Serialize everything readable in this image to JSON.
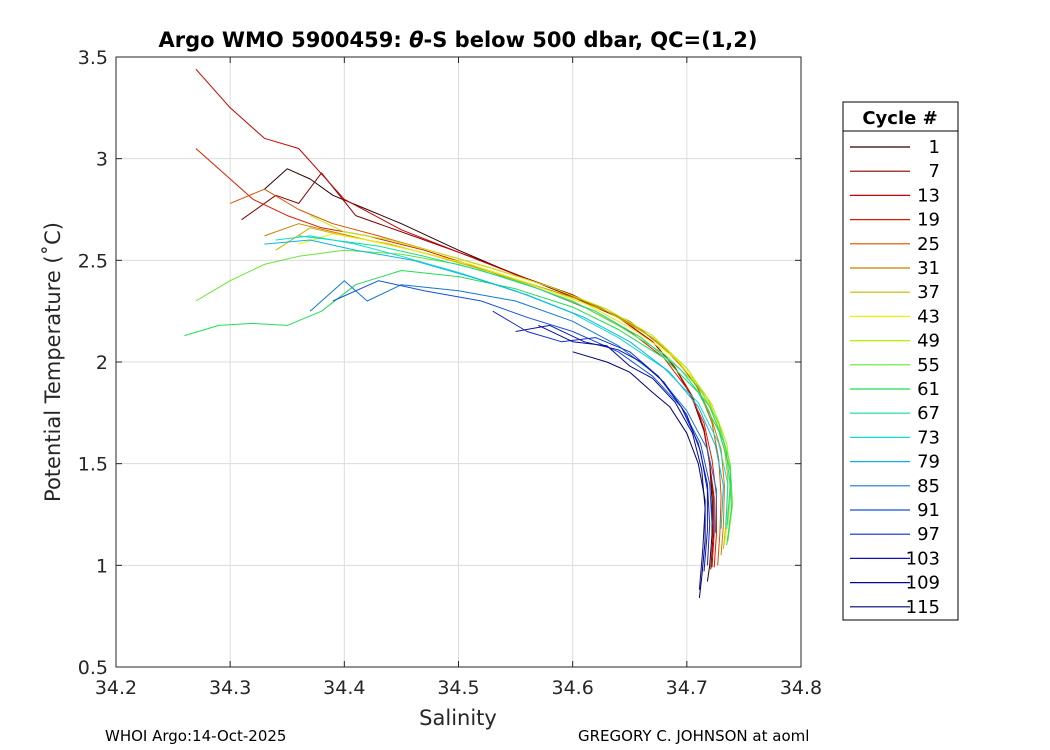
{
  "chart_data": {
    "type": "line",
    "title_prefix": "Argo WMO 5900459: ",
    "title_theta": "θ",
    "title_suffix": "-S below 500 dbar,  QC=(1,2)",
    "xlabel": "Salinity",
    "ylabel": "Potential Temperature (˚C)",
    "xlim": [
      34.2,
      34.8
    ],
    "ylim": [
      0.5,
      3.5
    ],
    "xticks": [
      "34.2",
      "34.3",
      "34.4",
      "34.5",
      "34.6",
      "34.7",
      "34.8"
    ],
    "yticks": [
      "0.5",
      "1",
      "1.5",
      "2",
      "2.5",
      "3",
      "3.5"
    ],
    "grid": true,
    "legend_title": "Cycle #",
    "legend_position": "right",
    "legend": [
      {
        "label": "1",
        "color": "#300000"
      },
      {
        "label": "7",
        "color": "#8a0000"
      },
      {
        "label": "13",
        "color": "#cc0000"
      },
      {
        "label": "19",
        "color": "#e01c00"
      },
      {
        "label": "25",
        "color": "#dd5000"
      },
      {
        "label": "31",
        "color": "#c88000"
      },
      {
        "label": "37",
        "color": "#c8b400"
      },
      {
        "label": "43",
        "color": "#f0f000"
      },
      {
        "label": "49",
        "color": "#b4f000"
      },
      {
        "label": "55",
        "color": "#64e632"
      },
      {
        "label": "61",
        "color": "#22dd55"
      },
      {
        "label": "67",
        "color": "#10dd99"
      },
      {
        "label": "73",
        "color": "#10dcd2"
      },
      {
        "label": "79",
        "color": "#10b4e6"
      },
      {
        "label": "85",
        "color": "#1478d2"
      },
      {
        "label": "91",
        "color": "#1450dc"
      },
      {
        "label": "97",
        "color": "#1428d2"
      },
      {
        "label": "103",
        "color": "#0a14b4"
      },
      {
        "label": "109",
        "color": "#050a96"
      },
      {
        "label": "115",
        "color": "#00006e"
      }
    ],
    "series": [
      {
        "name": "1",
        "color": "#300000",
        "s": [
          34.33,
          34.35,
          34.37,
          34.39,
          34.42,
          34.45,
          34.5,
          34.55,
          34.6,
          34.64,
          34.67,
          34.69,
          34.705,
          34.715,
          34.72,
          34.722,
          34.722,
          34.72,
          34.718
        ],
        "t": [
          2.85,
          2.95,
          2.9,
          2.82,
          2.75,
          2.68,
          2.55,
          2.43,
          2.33,
          2.22,
          2.1,
          1.97,
          1.82,
          1.66,
          1.5,
          1.32,
          1.15,
          1.0,
          0.92
        ]
      },
      {
        "name": "7",
        "color": "#8a0000",
        "s": [
          34.31,
          34.34,
          34.36,
          34.38,
          34.41,
          34.46,
          34.51,
          34.56,
          34.6,
          34.64,
          34.67,
          34.69,
          34.705,
          34.715,
          34.72,
          34.723,
          34.723,
          34.721
        ],
        "t": [
          2.7,
          2.82,
          2.78,
          2.93,
          2.72,
          2.62,
          2.52,
          2.41,
          2.32,
          2.22,
          2.1,
          1.97,
          1.83,
          1.67,
          1.5,
          1.33,
          1.15,
          0.98
        ]
      },
      {
        "name": "13",
        "color": "#cc0000",
        "s": [
          34.27,
          34.3,
          34.33,
          34.36,
          34.4,
          34.45,
          34.5,
          34.55,
          34.6,
          34.64,
          34.67,
          34.69,
          34.705,
          34.715,
          34.72,
          34.724,
          34.724,
          34.722
        ],
        "t": [
          3.44,
          3.25,
          3.1,
          3.05,
          2.8,
          2.65,
          2.54,
          2.43,
          2.33,
          2.22,
          2.1,
          1.97,
          1.83,
          1.67,
          1.5,
          1.33,
          1.16,
          0.99
        ]
      },
      {
        "name": "19",
        "color": "#e01c00",
        "s": [
          34.27,
          34.3,
          34.32,
          34.35,
          34.38,
          34.42,
          34.47,
          34.52,
          34.57,
          34.61,
          34.65,
          34.68,
          34.7,
          34.715,
          34.722,
          34.726,
          34.726,
          34.724
        ],
        "t": [
          3.05,
          2.9,
          2.8,
          2.72,
          2.66,
          2.62,
          2.55,
          2.46,
          2.36,
          2.27,
          2.15,
          2.02,
          1.87,
          1.7,
          1.52,
          1.34,
          1.16,
          0.99
        ]
      },
      {
        "name": "25",
        "color": "#dd5000",
        "s": [
          34.3,
          34.33,
          34.36,
          34.39,
          34.43,
          34.48,
          34.53,
          34.58,
          34.62,
          34.66,
          34.69,
          34.71,
          34.722,
          34.728,
          34.73,
          34.729,
          34.727
        ],
        "t": [
          2.78,
          2.85,
          2.75,
          2.68,
          2.62,
          2.54,
          2.46,
          2.37,
          2.28,
          2.16,
          2.02,
          1.87,
          1.7,
          1.52,
          1.34,
          1.16,
          1.0
        ]
      },
      {
        "name": "31",
        "color": "#c88000",
        "s": [
          34.33,
          34.36,
          34.39,
          34.42,
          34.46,
          34.51,
          34.56,
          34.61,
          34.65,
          34.68,
          34.705,
          34.72,
          34.73,
          34.733,
          34.732,
          34.73
        ],
        "t": [
          2.62,
          2.68,
          2.64,
          2.6,
          2.55,
          2.48,
          2.39,
          2.3,
          2.2,
          2.07,
          1.92,
          1.75,
          1.57,
          1.39,
          1.2,
          1.05
        ]
      },
      {
        "name": "37",
        "color": "#c8b400",
        "s": [
          34.34,
          34.37,
          34.4,
          34.44,
          34.48,
          34.53,
          34.58,
          34.63,
          34.67,
          34.7,
          34.72,
          34.732,
          34.736,
          34.735,
          34.732
        ],
        "t": [
          2.55,
          2.66,
          2.62,
          2.58,
          2.52,
          2.44,
          2.35,
          2.25,
          2.12,
          1.97,
          1.8,
          1.62,
          1.43,
          1.25,
          1.08
        ]
      },
      {
        "name": "43",
        "color": "#f0f000",
        "s": [
          34.36,
          34.39,
          34.42,
          34.46,
          34.51,
          34.56,
          34.61,
          34.65,
          34.69,
          34.715,
          34.73,
          34.738,
          34.737,
          34.733
        ],
        "t": [
          2.58,
          2.63,
          2.6,
          2.55,
          2.48,
          2.39,
          2.29,
          2.17,
          2.02,
          1.85,
          1.66,
          1.47,
          1.28,
          1.1
        ]
      },
      {
        "name": "49",
        "color": "#b4f000",
        "s": [
          34.37,
          34.4,
          34.44,
          34.48,
          34.53,
          34.58,
          34.63,
          34.67,
          34.7,
          34.722,
          34.735,
          34.739,
          34.736
        ],
        "t": [
          2.72,
          2.64,
          2.6,
          2.54,
          2.46,
          2.37,
          2.26,
          2.13,
          1.97,
          1.79,
          1.6,
          1.41,
          1.2
        ]
      },
      {
        "name": "55",
        "color": "#64e632",
        "s": [
          34.27,
          34.3,
          34.33,
          34.36,
          34.4,
          34.45,
          34.5,
          34.55,
          34.6,
          34.64,
          34.68,
          34.71,
          34.728,
          34.738,
          34.74,
          34.736
        ],
        "t": [
          2.3,
          2.4,
          2.48,
          2.52,
          2.55,
          2.53,
          2.48,
          2.4,
          2.3,
          2.18,
          2.04,
          1.88,
          1.7,
          1.5,
          1.3,
          1.12
        ]
      },
      {
        "name": "61",
        "color": "#22dd55",
        "s": [
          34.26,
          34.29,
          34.32,
          34.35,
          34.38,
          34.41,
          34.45,
          34.5,
          34.55,
          34.6,
          34.64,
          34.68,
          34.71,
          34.728,
          34.738,
          34.739,
          34.735
        ],
        "t": [
          2.13,
          2.18,
          2.19,
          2.18,
          2.25,
          2.38,
          2.45,
          2.42,
          2.36,
          2.27,
          2.16,
          2.02,
          1.85,
          1.66,
          1.47,
          1.28,
          1.1
        ]
      },
      {
        "name": "67",
        "color": "#10dd99",
        "s": [
          34.36,
          34.39,
          34.43,
          34.47,
          34.52,
          34.57,
          34.62,
          34.66,
          34.695,
          34.72,
          34.734,
          34.738,
          34.735
        ],
        "t": [
          2.62,
          2.6,
          2.57,
          2.52,
          2.45,
          2.36,
          2.25,
          2.12,
          1.96,
          1.78,
          1.58,
          1.39,
          1.18
        ]
      },
      {
        "name": "73",
        "color": "#10dcd2",
        "s": [
          34.34,
          34.37,
          34.41,
          34.45,
          34.5,
          34.55,
          34.6,
          34.64,
          34.68,
          34.71,
          34.728,
          34.736,
          34.734
        ],
        "t": [
          2.6,
          2.62,
          2.58,
          2.52,
          2.44,
          2.35,
          2.24,
          2.12,
          1.97,
          1.8,
          1.6,
          1.4,
          1.2
        ]
      },
      {
        "name": "79",
        "color": "#10b4e6",
        "s": [
          34.33,
          34.37,
          34.41,
          34.46,
          34.51,
          34.56,
          34.61,
          34.65,
          34.685,
          34.71,
          34.725,
          34.732,
          34.73
        ],
        "t": [
          2.58,
          2.6,
          2.55,
          2.5,
          2.42,
          2.33,
          2.22,
          2.1,
          1.95,
          1.78,
          1.59,
          1.39,
          1.18
        ]
      },
      {
        "name": "85",
        "color": "#1478d2",
        "s": [
          34.37,
          34.4,
          34.42,
          34.45,
          34.5,
          34.55,
          34.6,
          34.64,
          34.675,
          34.7,
          34.718,
          34.726,
          34.725
        ],
        "t": [
          2.25,
          2.4,
          2.3,
          2.38,
          2.35,
          2.3,
          2.2,
          2.08,
          1.93,
          1.76,
          1.57,
          1.37,
          1.16
        ]
      },
      {
        "name": "91",
        "color": "#1450dc",
        "s": [
          34.39,
          34.43,
          34.47,
          34.52,
          34.56,
          34.6,
          34.64,
          34.67,
          34.695,
          34.712,
          34.72,
          34.722
        ],
        "t": [
          2.3,
          2.4,
          2.35,
          2.3,
          2.22,
          2.15,
          2.05,
          1.93,
          1.78,
          1.6,
          1.4,
          1.2
        ]
      },
      {
        "name": "97",
        "color": "#1428d2",
        "s": [
          34.53,
          34.56,
          34.59,
          34.62,
          34.65,
          34.675,
          34.695,
          34.71,
          34.718,
          34.72,
          34.718
        ],
        "t": [
          2.25,
          2.15,
          2.1,
          2.12,
          2.05,
          1.93,
          1.78,
          1.6,
          1.4,
          1.2,
          1.0
        ]
      },
      {
        "name": "103",
        "color": "#0a14b4",
        "s": [
          34.55,
          34.58,
          34.61,
          34.64,
          34.66,
          34.68,
          34.7,
          34.712,
          34.718,
          34.718,
          34.715
        ],
        "t": [
          2.15,
          2.18,
          2.1,
          2.06,
          2.0,
          1.9,
          1.74,
          1.56,
          1.37,
          1.17,
          0.97
        ]
      },
      {
        "name": "109",
        "color": "#050a96",
        "s": [
          34.57,
          34.6,
          34.63,
          34.65,
          34.67,
          34.69,
          34.705,
          34.713,
          34.716,
          34.714,
          34.711
        ],
        "t": [
          2.18,
          2.1,
          2.08,
          1.98,
          1.92,
          1.8,
          1.65,
          1.47,
          1.28,
          1.08,
          0.88
        ]
      },
      {
        "name": "115",
        "color": "#00006e",
        "s": [
          34.6,
          34.63,
          34.65,
          34.67,
          34.685,
          34.7,
          34.71,
          34.716,
          34.716,
          34.713,
          34.711
        ],
        "t": [
          2.05,
          2.0,
          1.95,
          1.85,
          1.78,
          1.65,
          1.5,
          1.32,
          1.12,
          0.94,
          0.84
        ]
      }
    ]
  },
  "footer": {
    "left": "WHOI Argo:14-Oct-2025",
    "right": "GREGORY C. JOHNSON at aoml"
  }
}
